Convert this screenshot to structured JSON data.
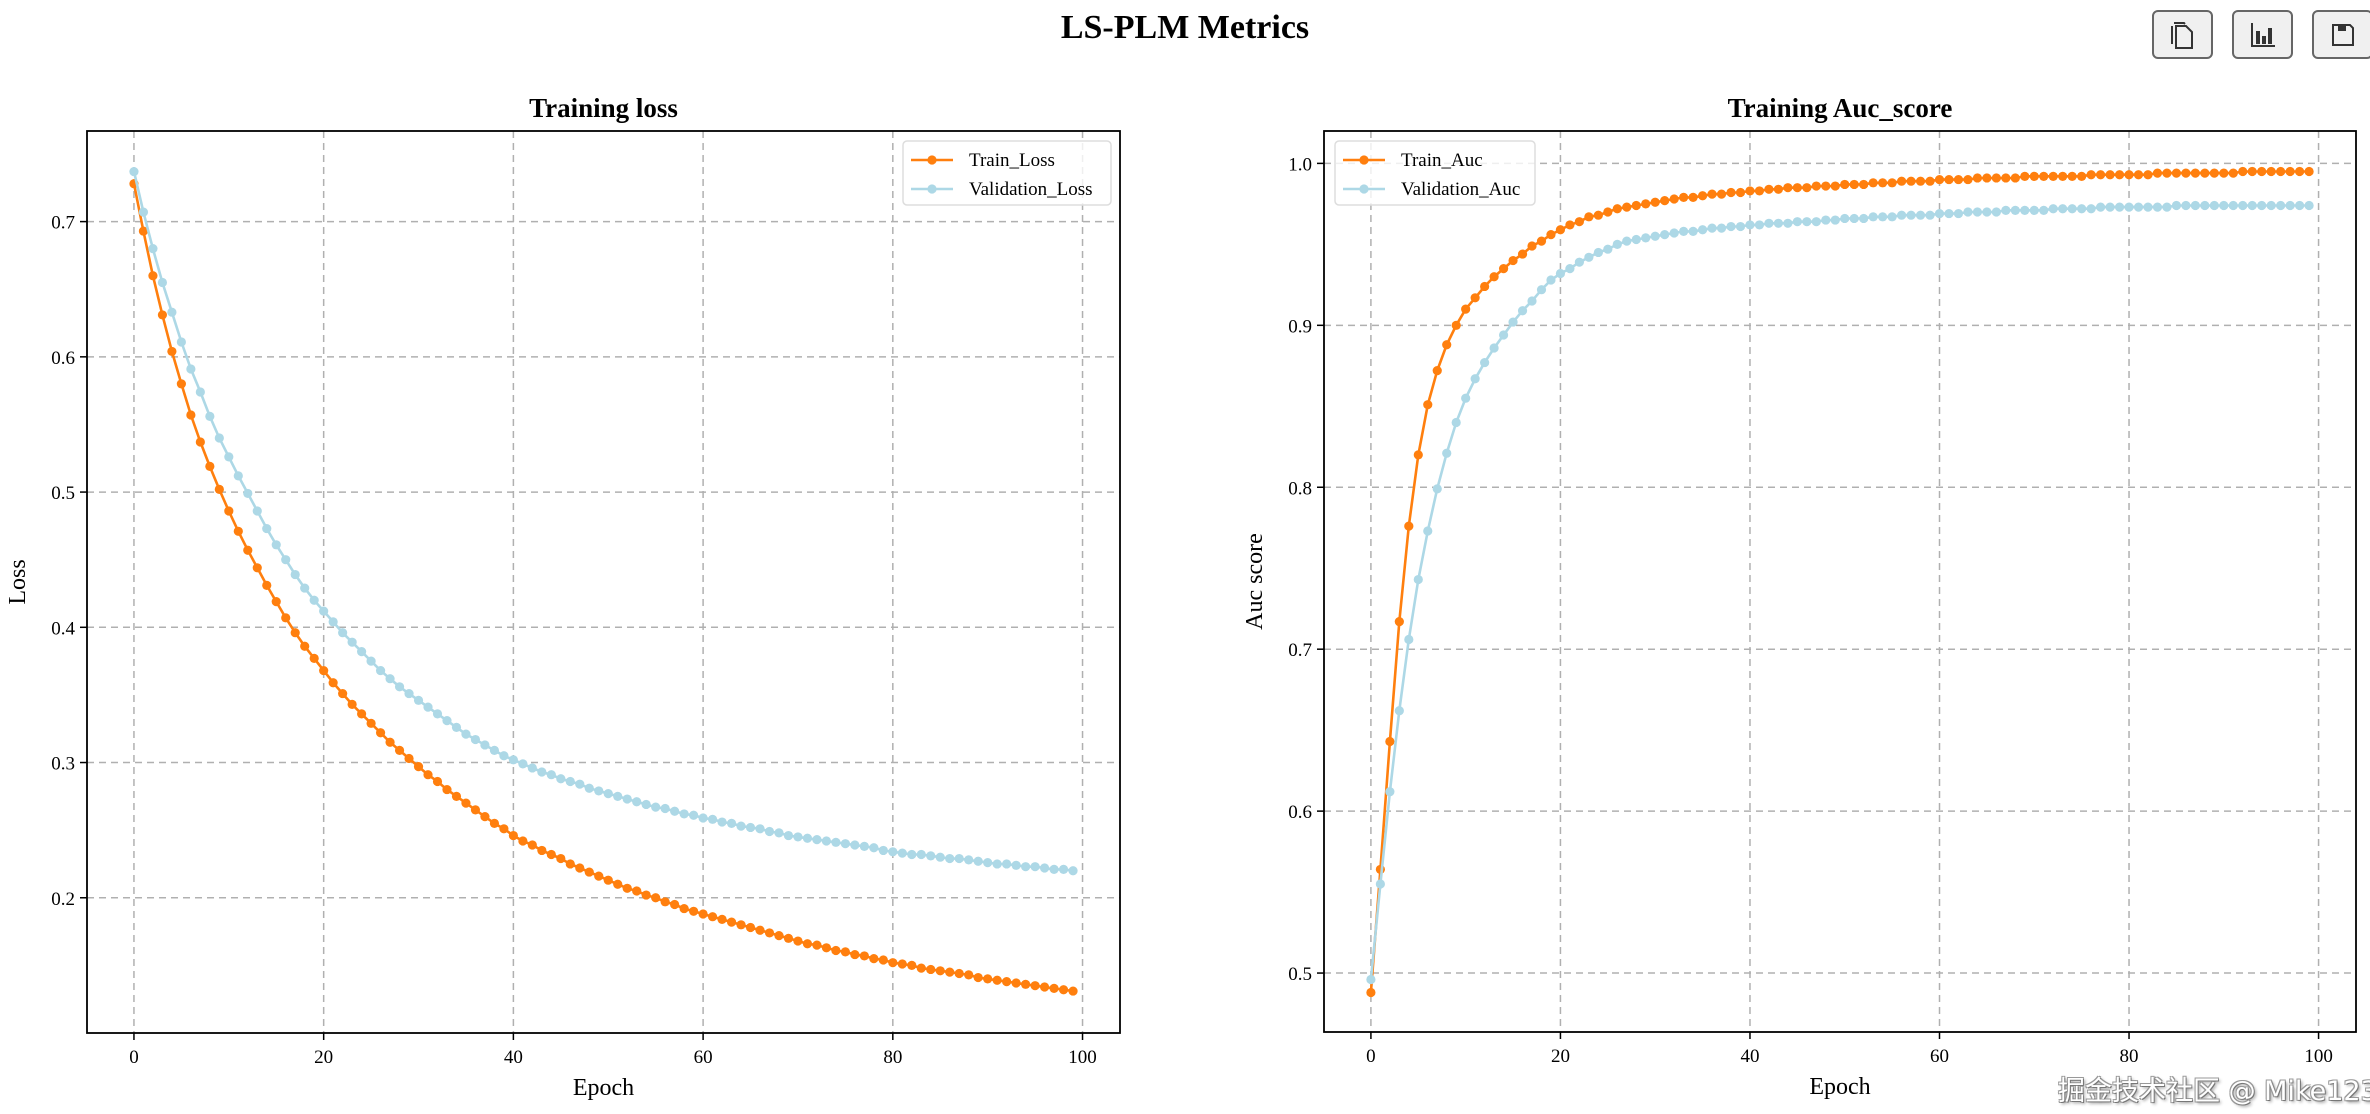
{
  "figure_title": "LS-PLM Metrics",
  "toolbar": {
    "buttons": [
      {
        "name": "copy-button",
        "icon": "copy-icon"
      },
      {
        "name": "chart-button",
        "icon": "bar-chart-icon"
      },
      {
        "name": "save-button",
        "icon": "floppy-disk-icon"
      }
    ]
  },
  "watermark": "掘金技术社区 @ Mike123",
  "colors": {
    "train": "#ff7f0e",
    "validation": "#add8e6",
    "grid": "#b0b0b0"
  },
  "chart_data": [
    {
      "type": "line",
      "title": "Training loss",
      "xlabel": "Epoch",
      "ylabel": "Loss",
      "xlim": [
        -4.95,
        103.95
      ],
      "ylim": [
        0.1,
        0.767
      ],
      "xticks": [
        0,
        20,
        40,
        60,
        80,
        100
      ],
      "yticks": [
        0.2,
        0.3,
        0.4,
        0.5,
        0.6,
        0.7
      ],
      "grid": true,
      "legend_position": "top-right",
      "series": [
        {
          "name": "Train_Loss",
          "color": "#ff7f0e",
          "values": [
            0.728,
            0.693,
            0.66,
            0.631,
            0.604,
            0.58,
            0.557,
            0.537,
            0.519,
            0.502,
            0.486,
            0.471,
            0.457,
            0.444,
            0.431,
            0.419,
            0.407,
            0.396,
            0.386,
            0.377,
            0.368,
            0.359,
            0.351,
            0.343,
            0.336,
            0.329,
            0.322,
            0.315,
            0.309,
            0.303,
            0.297,
            0.291,
            0.286,
            0.28,
            0.275,
            0.27,
            0.265,
            0.26,
            0.255,
            0.251,
            0.246,
            0.242,
            0.239,
            0.235,
            0.232,
            0.229,
            0.225,
            0.222,
            0.219,
            0.216,
            0.213,
            0.21,
            0.207,
            0.205,
            0.202,
            0.2,
            0.197,
            0.195,
            0.192,
            0.19,
            0.188,
            0.186,
            0.184,
            0.182,
            0.18,
            0.178,
            0.176,
            0.174,
            0.172,
            0.17,
            0.168,
            0.166,
            0.165,
            0.163,
            0.161,
            0.16,
            0.158,
            0.157,
            0.155,
            0.154,
            0.152,
            0.151,
            0.15,
            0.148,
            0.147,
            0.146,
            0.145,
            0.144,
            0.143,
            0.141,
            0.14,
            0.139,
            0.138,
            0.137,
            0.136,
            0.135,
            0.134,
            0.133,
            0.132,
            0.131
          ]
        },
        {
          "name": "Validation_Loss",
          "color": "#add8e6",
          "values": [
            0.737,
            0.707,
            0.68,
            0.655,
            0.633,
            0.611,
            0.591,
            0.574,
            0.556,
            0.54,
            0.526,
            0.512,
            0.499,
            0.486,
            0.473,
            0.461,
            0.45,
            0.439,
            0.429,
            0.42,
            0.412,
            0.404,
            0.396,
            0.389,
            0.382,
            0.375,
            0.368,
            0.362,
            0.356,
            0.351,
            0.346,
            0.341,
            0.336,
            0.331,
            0.326,
            0.321,
            0.317,
            0.313,
            0.309,
            0.305,
            0.302,
            0.299,
            0.296,
            0.293,
            0.291,
            0.288,
            0.286,
            0.284,
            0.281,
            0.279,
            0.277,
            0.275,
            0.273,
            0.271,
            0.269,
            0.267,
            0.266,
            0.264,
            0.262,
            0.261,
            0.259,
            0.258,
            0.256,
            0.255,
            0.253,
            0.252,
            0.251,
            0.249,
            0.248,
            0.246,
            0.245,
            0.244,
            0.243,
            0.242,
            0.241,
            0.24,
            0.239,
            0.238,
            0.237,
            0.235,
            0.234,
            0.233,
            0.232,
            0.232,
            0.231,
            0.23,
            0.229,
            0.229,
            0.228,
            0.227,
            0.226,
            0.225,
            0.225,
            0.224,
            0.223,
            0.223,
            0.222,
            0.221,
            0.221,
            0.22
          ]
        }
      ]
    },
    {
      "type": "line",
      "title": "Training Auc_score",
      "xlabel": "Epoch",
      "ylabel": "Auc score",
      "xlim": [
        -4.95,
        103.95
      ],
      "ylim": [
        0.4636,
        1.02
      ],
      "xticks": [
        0,
        20,
        40,
        60,
        80,
        100
      ],
      "yticks": [
        0.5,
        0.6,
        0.7,
        0.8,
        0.9,
        1.0
      ],
      "grid": true,
      "legend_position": "top-left",
      "series": [
        {
          "name": "Train_Auc",
          "color": "#ff7f0e",
          "values": [
            0.488,
            0.564,
            0.643,
            0.717,
            0.776,
            0.82,
            0.851,
            0.872,
            0.888,
            0.9,
            0.91,
            0.917,
            0.924,
            0.93,
            0.935,
            0.94,
            0.944,
            0.949,
            0.952,
            0.956,
            0.959,
            0.962,
            0.964,
            0.967,
            0.968,
            0.97,
            0.972,
            0.973,
            0.974,
            0.975,
            0.976,
            0.977,
            0.978,
            0.979,
            0.979,
            0.98,
            0.981,
            0.981,
            0.982,
            0.982,
            0.983,
            0.983,
            0.984,
            0.984,
            0.985,
            0.985,
            0.985,
            0.986,
            0.986,
            0.986,
            0.987,
            0.987,
            0.987,
            0.988,
            0.988,
            0.988,
            0.989,
            0.989,
            0.989,
            0.989,
            0.99,
            0.99,
            0.99,
            0.99,
            0.991,
            0.991,
            0.991,
            0.991,
            0.991,
            0.992,
            0.992,
            0.992,
            0.992,
            0.992,
            0.992,
            0.992,
            0.993,
            0.993,
            0.993,
            0.993,
            0.993,
            0.993,
            0.993,
            0.994,
            0.994,
            0.994,
            0.994,
            0.994,
            0.994,
            0.994,
            0.994,
            0.994,
            0.995,
            0.995,
            0.995,
            0.995,
            0.995,
            0.995,
            0.995,
            0.995
          ]
        },
        {
          "name": "Validation_Auc",
          "color": "#add8e6",
          "values": [
            0.496,
            0.555,
            0.612,
            0.662,
            0.706,
            0.743,
            0.773,
            0.799,
            0.821,
            0.84,
            0.855,
            0.867,
            0.877,
            0.886,
            0.894,
            0.902,
            0.909,
            0.915,
            0.922,
            0.928,
            0.932,
            0.935,
            0.939,
            0.942,
            0.945,
            0.947,
            0.95,
            0.952,
            0.953,
            0.954,
            0.955,
            0.956,
            0.957,
            0.958,
            0.958,
            0.959,
            0.96,
            0.96,
            0.961,
            0.961,
            0.962,
            0.962,
            0.963,
            0.963,
            0.963,
            0.964,
            0.964,
            0.964,
            0.965,
            0.965,
            0.966,
            0.966,
            0.966,
            0.967,
            0.967,
            0.967,
            0.968,
            0.968,
            0.968,
            0.968,
            0.969,
            0.969,
            0.969,
            0.97,
            0.97,
            0.97,
            0.97,
            0.971,
            0.971,
            0.971,
            0.971,
            0.971,
            0.972,
            0.972,
            0.972,
            0.972,
            0.972,
            0.973,
            0.973,
            0.973,
            0.973,
            0.973,
            0.973,
            0.973,
            0.973,
            0.974,
            0.974,
            0.974,
            0.974,
            0.974,
            0.974,
            0.974,
            0.974,
            0.974,
            0.974,
            0.974,
            0.974,
            0.974,
            0.974,
            0.974
          ]
        }
      ]
    }
  ]
}
